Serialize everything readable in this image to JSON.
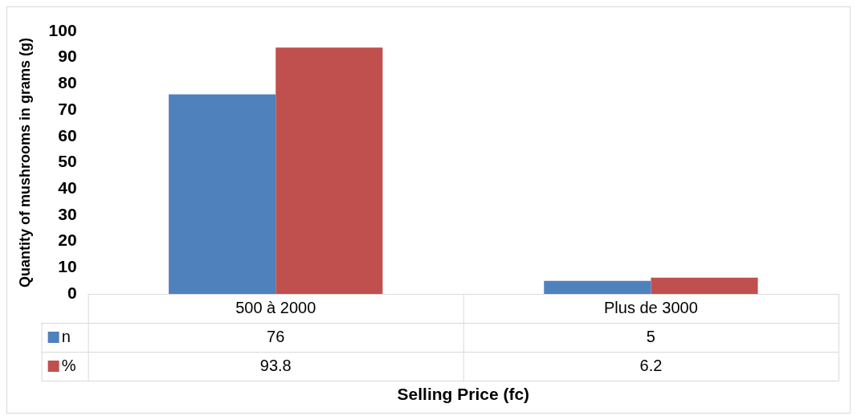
{
  "chart_data": {
    "type": "bar",
    "xlabel": "Selling Price (fc)",
    "ylabel": "Quantity of mushrooms in grams (g)",
    "categories": [
      "500 à 2000",
      "Plus de 3000"
    ],
    "series": [
      {
        "name": "n",
        "color": "#4f81bd",
        "values": [
          76,
          5
        ]
      },
      {
        "name": "%",
        "color": "#c0504d",
        "values": [
          93.8,
          6.2
        ]
      }
    ],
    "ylim": [
      0,
      100
    ],
    "yticks": [
      0,
      10,
      20,
      30,
      40,
      50,
      60,
      70,
      80,
      90,
      100
    ],
    "grid": false,
    "legend": "bottom left",
    "data_labels": true
  }
}
